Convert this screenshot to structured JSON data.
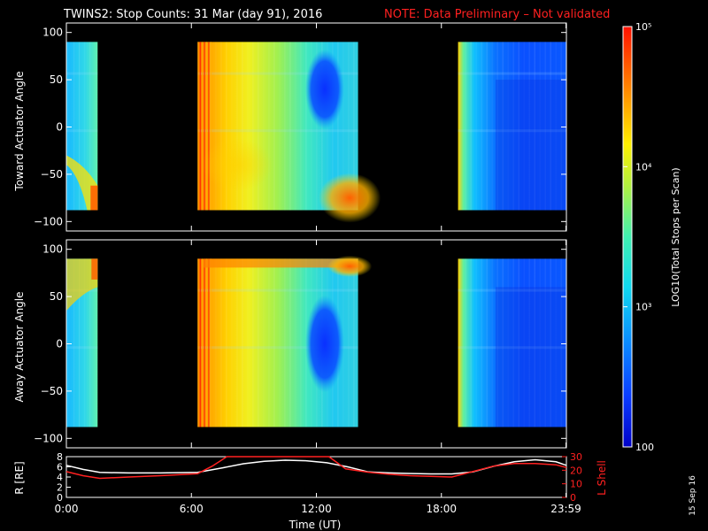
{
  "title": {
    "main": "TWINS2: Stop Counts: 31 Mar (day  91), 2016",
    "note": "NOTE: Data Preliminary – Not validated",
    "note_color": "#ff2020"
  },
  "date_stamp": "15 Sep 16",
  "chart_data": [
    {
      "type": "heatmap",
      "name": "toward",
      "ylabel": "Toward Actuator Angle",
      "ylim": [
        -110,
        110
      ],
      "yticks": [
        -100,
        -50,
        0,
        50,
        100
      ],
      "xlim_hours": [
        0,
        24
      ],
      "data_y_range": [
        -88,
        90
      ],
      "data_blocks_hours": [
        [
          0.0,
          1.5
        ],
        [
          6.3,
          14.0
        ],
        [
          18.8,
          24.0
        ]
      ],
      "background_color": "#000000"
    },
    {
      "type": "heatmap",
      "name": "away",
      "ylabel": "Away Actuator Angle",
      "ylim": [
        -110,
        110
      ],
      "yticks": [
        -100,
        -50,
        0,
        50,
        100
      ],
      "xlim_hours": [
        0,
        24
      ],
      "data_y_range": [
        -88,
        90
      ],
      "data_blocks_hours": [
        [
          0.0,
          1.5
        ],
        [
          6.3,
          14.0
        ],
        [
          18.8,
          24.0
        ]
      ],
      "background_color": "#000000"
    },
    {
      "type": "line",
      "name": "orbit",
      "xlabel": "Time (UT)",
      "xticks": [
        "0:00",
        "6:00",
        "12:00",
        "18:00",
        "23:59"
      ],
      "xtick_hours": [
        0,
        6,
        12,
        18,
        23.98
      ],
      "ylabel_left": "R [RΕ]",
      "ylim_left": [
        0,
        8
      ],
      "yticks_left": [
        0,
        2,
        4,
        6,
        8
      ],
      "ylabel_right": "L Shell",
      "ylim_right": [
        0,
        30
      ],
      "yticks_right": [
        0,
        10,
        20,
        30
      ],
      "series": [
        {
          "axis": "left",
          "color": "#ffffff",
          "x": [
            0,
            0.8,
            1.6,
            3,
            4.5,
            6.3,
            7.5,
            8.5,
            9.5,
            10.5,
            11.5,
            12.5,
            13.5,
            14.5,
            15.5,
            16.5,
            17.5,
            18.5,
            19.5,
            20.5,
            21.5,
            22.5,
            23.5,
            24
          ],
          "y": [
            6.3,
            5.5,
            4.9,
            4.8,
            4.8,
            4.9,
            5.8,
            6.6,
            7.1,
            7.3,
            7.2,
            6.8,
            6.0,
            5.0,
            4.8,
            4.7,
            4.6,
            4.6,
            5.0,
            6.1,
            7.0,
            7.4,
            7.0,
            6.3
          ]
        },
        {
          "axis": "right",
          "color": "#ff2020",
          "x": [
            0,
            0.8,
            1.6,
            3,
            4.5,
            6.3,
            7.0,
            7.7,
            12.6,
            13.4,
            14.5,
            15.5,
            16.5,
            17.5,
            18.5,
            19.5,
            20.5,
            21.5,
            22.5,
            23.5,
            24
          ],
          "y": [
            19,
            16,
            14,
            15,
            16,
            17.5,
            23,
            30,
            30,
            21,
            18.5,
            17,
            16,
            15.5,
            15,
            19,
            23,
            25,
            25,
            24,
            22
          ]
        }
      ]
    }
  ],
  "colorbar": {
    "label": "LOG10(Total Stops per Scan)",
    "tick_labels": [
      {
        "value": 100,
        "text": "100"
      },
      {
        "value": 1000,
        "text": "10³"
      },
      {
        "value": 10000,
        "text": "10⁴"
      },
      {
        "value": 100000,
        "text": "10⁵"
      }
    ],
    "range": [
      100,
      100000
    ],
    "colors": [
      "#0000c8",
      "#0a3cff",
      "#0a8cff",
      "#10d8f0",
      "#40f0b0",
      "#b0f040",
      "#fff000",
      "#ffa000",
      "#ff5000",
      "#ff1000"
    ]
  }
}
